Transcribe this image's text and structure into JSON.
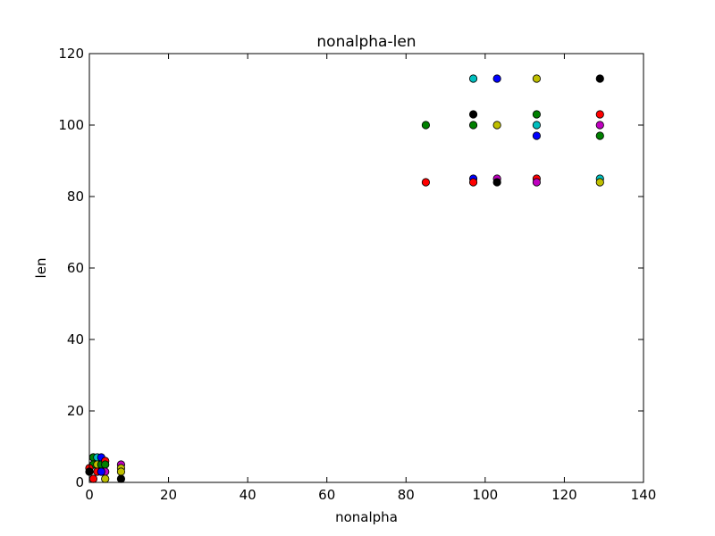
{
  "chart_data": {
    "type": "scatter",
    "title": "nonalpha-len",
    "xlabel": "nonalpha",
    "ylabel": "len",
    "xlim": [
      0,
      140
    ],
    "ylim": [
      0,
      120
    ],
    "xticks": [
      "0",
      "20",
      "40",
      "60",
      "80",
      "100",
      "120",
      "140"
    ],
    "yticks": [
      "0",
      "20",
      "40",
      "60",
      "80",
      "100",
      "120"
    ],
    "grid": false,
    "legend": "none",
    "palette": {
      "b": "#0000ff",
      "g": "#008000",
      "r": "#ff0000",
      "c": "#00bfbf",
      "m": "#bf00bf",
      "y": "#bfbf00",
      "k": "#000000"
    },
    "points": [
      {
        "x": 1,
        "y": 7,
        "color": "y"
      },
      {
        "x": 1,
        "y": 7,
        "color": "g"
      },
      {
        "x": 2,
        "y": 7,
        "color": "c"
      },
      {
        "x": 3,
        "y": 7,
        "color": "b"
      },
      {
        "x": 1,
        "y": 5,
        "color": "g"
      },
      {
        "x": 2,
        "y": 5,
        "color": "y"
      },
      {
        "x": 3,
        "y": 5,
        "color": "g"
      },
      {
        "x": 0,
        "y": 4,
        "color": "r"
      },
      {
        "x": 0,
        "y": 3,
        "color": "k"
      },
      {
        "x": 2,
        "y": 3,
        "color": "r"
      },
      {
        "x": 1,
        "y": 1,
        "color": "r"
      },
      {
        "x": 4,
        "y": 6,
        "color": "r"
      },
      {
        "x": 4,
        "y": 5,
        "color": "g"
      },
      {
        "x": 4,
        "y": 3,
        "color": "m"
      },
      {
        "x": 4,
        "y": 1,
        "color": "y"
      },
      {
        "x": 3,
        "y": 3,
        "color": "b"
      },
      {
        "x": 8,
        "y": 5,
        "color": "m"
      },
      {
        "x": 8,
        "y": 4,
        "color": "y"
      },
      {
        "x": 8,
        "y": 3,
        "color": "y"
      },
      {
        "x": 8,
        "y": 1,
        "color": "k"
      },
      {
        "x": 85,
        "y": 100,
        "color": "g"
      },
      {
        "x": 85,
        "y": 84,
        "color": "r"
      },
      {
        "x": 97,
        "y": 113,
        "color": "c"
      },
      {
        "x": 97,
        "y": 103,
        "color": "k"
      },
      {
        "x": 97,
        "y": 100,
        "color": "g"
      },
      {
        "x": 97,
        "y": 85,
        "color": "b"
      },
      {
        "x": 97,
        "y": 84,
        "color": "r"
      },
      {
        "x": 103,
        "y": 113,
        "color": "b"
      },
      {
        "x": 103,
        "y": 100,
        "color": "y"
      },
      {
        "x": 103,
        "y": 85,
        "color": "m"
      },
      {
        "x": 103,
        "y": 84,
        "color": "k"
      },
      {
        "x": 113,
        "y": 113,
        "color": "y"
      },
      {
        "x": 113,
        "y": 103,
        "color": "g"
      },
      {
        "x": 113,
        "y": 100,
        "color": "c"
      },
      {
        "x": 113,
        "y": 97,
        "color": "b"
      },
      {
        "x": 113,
        "y": 85,
        "color": "r"
      },
      {
        "x": 113,
        "y": 84,
        "color": "m"
      },
      {
        "x": 129,
        "y": 113,
        "color": "k"
      },
      {
        "x": 129,
        "y": 103,
        "color": "r"
      },
      {
        "x": 129,
        "y": 100,
        "color": "m"
      },
      {
        "x": 129,
        "y": 97,
        "color": "g"
      },
      {
        "x": 129,
        "y": 85,
        "color": "c"
      },
      {
        "x": 129,
        "y": 84,
        "color": "y"
      }
    ]
  }
}
